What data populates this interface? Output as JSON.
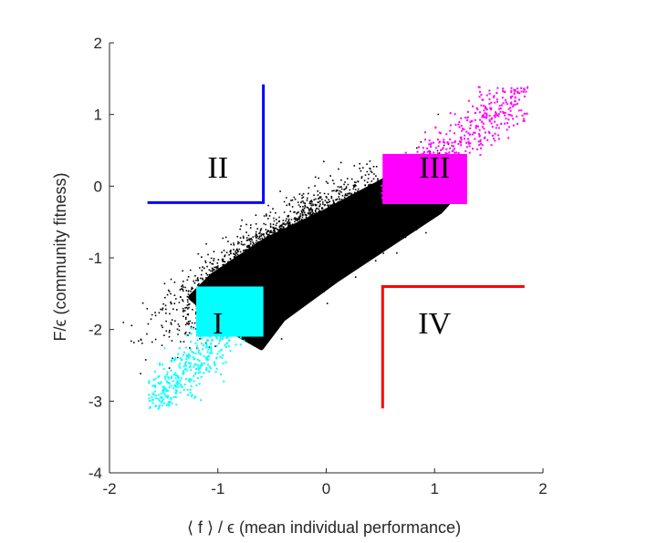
{
  "chart_data": {
    "type": "scatter",
    "title": "",
    "xlabel": "⟨ f ⟩ / ϵ (mean individual performance)",
    "ylabel": "F/ϵ (community fitness)",
    "xlim": [
      -2,
      2
    ],
    "ylim": [
      -4,
      2
    ],
    "xticks": [
      -2,
      -1,
      0,
      1,
      2
    ],
    "xtick_labels": [
      "-2",
      "-1",
      "0",
      "1",
      "2"
    ],
    "yticks": [
      -4,
      -3,
      -2,
      -1,
      0,
      1,
      2
    ],
    "ytick_labels": [
      "-4",
      "-3",
      "-2",
      "-1",
      "0",
      "1",
      "2"
    ],
    "grid": false,
    "colors": {
      "background": "#000000",
      "region_I": "#00ffff",
      "region_II": "#0000ff",
      "region_III": "#ff00ff",
      "region_IV": "#ff0000",
      "axis": "#262626"
    },
    "series": [
      {
        "name": "all communities",
        "color": "#000000",
        "cloud": {
          "center": [
            -0.3,
            -0.85
          ],
          "slope": 0.95,
          "spread_major": 0.62,
          "spread_minor": 0.2,
          "n_points": 5000
        },
        "outline": [
          [
            -1.25,
            -1.55
          ],
          [
            -1.05,
            -1.25
          ],
          [
            -0.55,
            -0.75
          ],
          [
            0.0,
            -0.35
          ],
          [
            0.5,
            0.05
          ],
          [
            0.85,
            0.35
          ],
          [
            1.2,
            -0.1
          ],
          [
            1.05,
            -0.35
          ],
          [
            0.6,
            -0.8
          ],
          [
            0.1,
            -1.3
          ],
          [
            -0.4,
            -1.85
          ],
          [
            -0.6,
            -2.25
          ],
          [
            -0.95,
            -1.95
          ]
        ]
      },
      {
        "name": "region I",
        "color": "#00ffff",
        "filled_rect": {
          "x": [
            -1.2,
            -0.58
          ],
          "y": [
            -2.1,
            -1.4
          ]
        },
        "tail": {
          "x_range": [
            -1.65,
            -0.6
          ],
          "y_range": [
            -3.1,
            -1.5
          ],
          "n_points": 550
        }
      },
      {
        "name": "region III",
        "color": "#ff00ff",
        "filled_rect": {
          "x": [
            0.52,
            1.3
          ],
          "y": [
            -0.25,
            0.45
          ]
        },
        "tail": {
          "x_range": [
            0.5,
            1.85
          ],
          "y_range": [
            -0.2,
            1.4
          ],
          "n_points": 550
        }
      }
    ],
    "region_boundaries": [
      {
        "name": "II",
        "color": "#0000ff",
        "points": [
          [
            -1.65,
            -0.23
          ],
          [
            -0.58,
            -0.23
          ],
          [
            -0.58,
            1.42
          ]
        ]
      },
      {
        "name": "IV",
        "color": "#ff0000",
        "points": [
          [
            0.52,
            -3.1
          ],
          [
            0.52,
            -1.4
          ],
          [
            1.83,
            -1.4
          ]
        ]
      }
    ],
    "annotations": [
      {
        "text": "I",
        "x": -1.0,
        "y": -1.9
      },
      {
        "text": "II",
        "x": -1.0,
        "y": 0.27
      },
      {
        "text": "III",
        "x": 1.0,
        "y": 0.27
      },
      {
        "text": "IV",
        "x": 1.0,
        "y": -1.9
      }
    ]
  }
}
